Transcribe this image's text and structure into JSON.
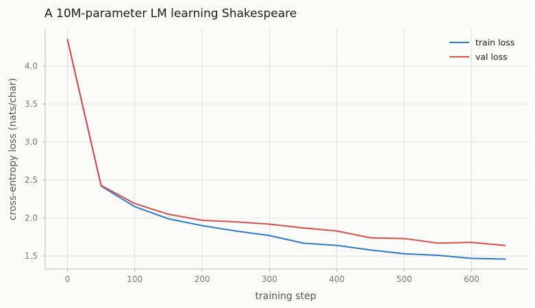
{
  "chart_data": {
    "type": "line",
    "title": "A 10M-parameter LM learning Shakespeare",
    "xlabel": "training step",
    "ylabel": "cross-entropy loss (nats/char)",
    "xlim": [
      -33,
      683
    ],
    "ylim": [
      1.33,
      4.49
    ],
    "x_ticks": [
      0,
      100,
      200,
      300,
      400,
      500,
      600
    ],
    "y_ticks": [
      1.5,
      2.0,
      2.5,
      3.0,
      3.5,
      4.0
    ],
    "x_tick_labels": [
      "0",
      "100",
      "200",
      "300",
      "400",
      "500",
      "600"
    ],
    "y_tick_labels": [
      "1.5",
      "2.0",
      "2.5",
      "3.0",
      "3.5",
      "4.0"
    ],
    "grid": true,
    "legend_position": "top-right",
    "x": [
      0,
      50,
      100,
      150,
      200,
      250,
      300,
      350,
      400,
      450,
      500,
      550,
      600,
      650
    ],
    "series": [
      {
        "name": "train loss",
        "color": "#2b78d0",
        "values": [
          4.35,
          2.42,
          2.15,
          1.99,
          1.9,
          1.83,
          1.77,
          1.67,
          1.64,
          1.58,
          1.53,
          1.51,
          1.47,
          1.46
        ]
      },
      {
        "name": "val loss",
        "color": "#dc4c46",
        "values": [
          4.35,
          2.43,
          2.19,
          2.05,
          1.97,
          1.95,
          1.92,
          1.87,
          1.83,
          1.74,
          1.73,
          1.67,
          1.68,
          1.64
        ]
      }
    ]
  },
  "colors": {
    "background": "#fbfbf9",
    "grid": "#e0e0e0",
    "axis": "#b8b8b8"
  }
}
